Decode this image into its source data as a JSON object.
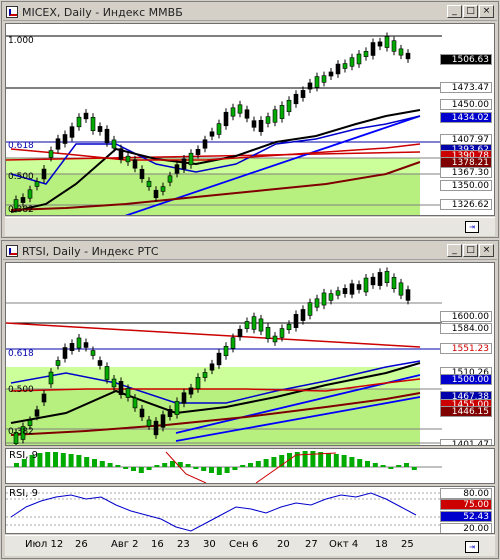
{
  "window1": {
    "title": "MICEX, Daily - Индекс ММВБ",
    "prices": [
      {
        "label": "1506.63",
        "bg": "#000000",
        "fg": "#ffffff"
      },
      {
        "label": "1473.47",
        "bg": "#ffffff",
        "fg": "#000000"
      },
      {
        "label": "1450.00",
        "bg": "#ffffff",
        "fg": "#000000"
      },
      {
        "label": "1434.02",
        "bg": "#0000cc",
        "fg": "#ffffff"
      },
      {
        "label": "1407.97",
        "bg": "#ffffff",
        "fg": "#000000"
      },
      {
        "label": "1393.62",
        "bg": "#0000aa",
        "fg": "#ffffff"
      },
      {
        "label": "1390.78",
        "bg": "#cc0000",
        "fg": "#ffffff"
      },
      {
        "label": "1378.21",
        "bg": "#800000",
        "fg": "#ffffff"
      },
      {
        "label": "1367.30",
        "bg": "#ffffff",
        "fg": "#000000"
      },
      {
        "label": "1350.00",
        "bg": "#ffffff",
        "fg": "#000000"
      },
      {
        "label": "1326.62",
        "bg": "#ffffff",
        "fg": "#000000"
      }
    ],
    "fib": {
      "top": "1.000",
      "mid": "0.618",
      "low": "0.500",
      "bot": "0.382"
    }
  },
  "window2": {
    "title": "RTSI, Daily - Индекс РТС",
    "prices": [
      {
        "label": "1600.00",
        "bg": "#ffffff",
        "fg": "#000000"
      },
      {
        "label": "1584.00",
        "bg": "#ffffff",
        "fg": "#000000"
      },
      {
        "label": "1551.23",
        "bg": "#ffffff",
        "fg": "#cc0000"
      },
      {
        "label": "1510.26",
        "bg": "#ffffff",
        "fg": "#000000"
      },
      {
        "label": "1500.00",
        "bg": "#0000cc",
        "fg": "#ffffff"
      },
      {
        "label": "1467.38",
        "bg": "#0000aa",
        "fg": "#ffffff"
      },
      {
        "label": "1455.00",
        "bg": "#cc0000",
        "fg": "#ffffff"
      },
      {
        "label": "1446.15",
        "bg": "#800000",
        "fg": "#ffffff"
      },
      {
        "label": "1401.47",
        "bg": "#ffffff",
        "fg": "#000000"
      }
    ],
    "fib": {
      "mid": "0.618",
      "low": "0.500",
      "bot": "0.382"
    },
    "rsi_hist_label": "RSI, 9",
    "rsi_label": "RSI, 9",
    "rsi_levels": [
      {
        "label": "80.00",
        "bg": "#ffffff",
        "fg": "#000000"
      },
      {
        "label": "75.00",
        "bg": "#cc0000",
        "fg": "#ffffff"
      },
      {
        "label": "52.43",
        "bg": "#0000cc",
        "fg": "#ffffff"
      },
      {
        "label": "20.00",
        "bg": "#ffffff",
        "fg": "#000000"
      }
    ]
  },
  "xaxis": [
    "Июл 12",
    "26",
    "Авг 2",
    "16",
    "23",
    "30",
    "Сен 6",
    "20",
    "27",
    "Окт 4",
    "18",
    "25"
  ],
  "buttons": {
    "minimize": "_",
    "maximize": "□",
    "close": "×",
    "nav": "⇥"
  }
}
